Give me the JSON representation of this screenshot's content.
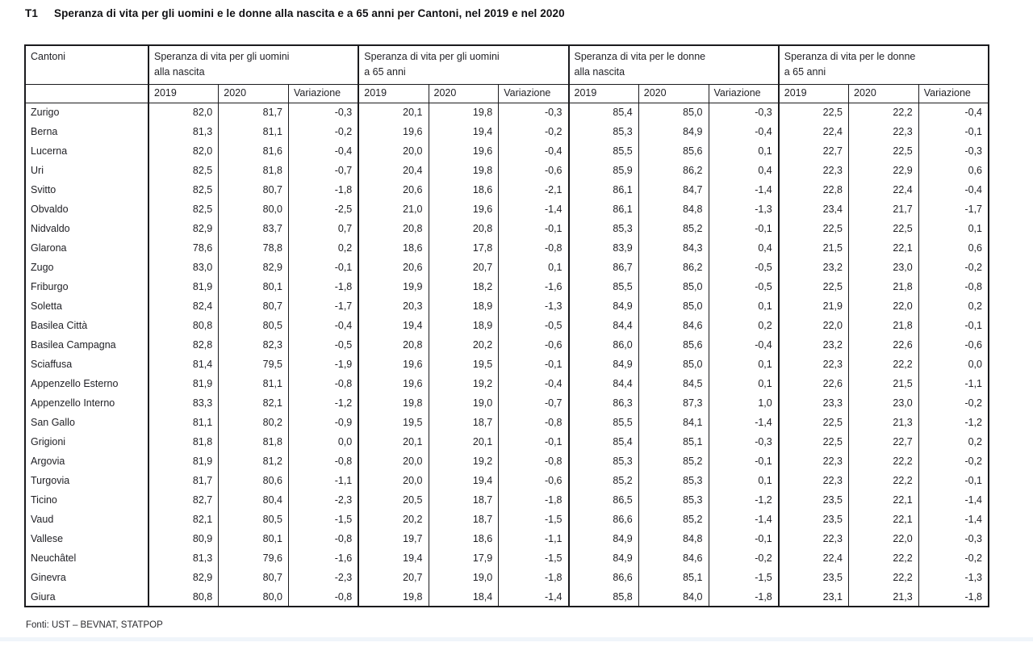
{
  "title": {
    "number": "T1",
    "text": "Speranza di vita per gli uomini e le donne alla nascita e a 65 anni per Cantoni, nel 2019 e nel 2020"
  },
  "table": {
    "canton_header": "Cantoni",
    "groups": [
      {
        "line1": "Speranza di vita per gli uomini",
        "line2": "alla nascita"
      },
      {
        "line1": "Speranza di vita per gli uomini",
        "line2": "a 65 anni"
      },
      {
        "line1": "Speranza di vita per le donne",
        "line2": "alla nascita"
      },
      {
        "line1": "Speranza di vita per le donne",
        "line2": "a 65 anni"
      }
    ],
    "sub_headers": [
      "2019",
      "2020",
      "Variazione"
    ],
    "rows": [
      [
        "Zurigo",
        "82,0",
        "81,7",
        "-0,3",
        "20,1",
        "19,8",
        "-0,3",
        "85,4",
        "85,0",
        "-0,3",
        "22,5",
        "22,2",
        "-0,4"
      ],
      [
        "Berna",
        "81,3",
        "81,1",
        "-0,2",
        "19,6",
        "19,4",
        "-0,2",
        "85,3",
        "84,9",
        "-0,4",
        "22,4",
        "22,3",
        "-0,1"
      ],
      [
        "Lucerna",
        "82,0",
        "81,6",
        "-0,4",
        "20,0",
        "19,6",
        "-0,4",
        "85,5",
        "85,6",
        "0,1",
        "22,7",
        "22,5",
        "-0,3"
      ],
      [
        "Uri",
        "82,5",
        "81,8",
        "-0,7",
        "20,4",
        "19,8",
        "-0,6",
        "85,9",
        "86,2",
        "0,4",
        "22,3",
        "22,9",
        "0,6"
      ],
      [
        "Svitto",
        "82,5",
        "80,7",
        "-1,8",
        "20,6",
        "18,6",
        "-2,1",
        "86,1",
        "84,7",
        "-1,4",
        "22,8",
        "22,4",
        "-0,4"
      ],
      [
        "Obvaldo",
        "82,5",
        "80,0",
        "-2,5",
        "21,0",
        "19,6",
        "-1,4",
        "86,1",
        "84,8",
        "-1,3",
        "23,4",
        "21,7",
        "-1,7"
      ],
      [
        "Nidvaldo",
        "82,9",
        "83,7",
        "0,7",
        "20,8",
        "20,8",
        "-0,1",
        "85,3",
        "85,2",
        "-0,1",
        "22,5",
        "22,5",
        "0,1"
      ],
      [
        "Glarona",
        "78,6",
        "78,8",
        "0,2",
        "18,6",
        "17,8",
        "-0,8",
        "83,9",
        "84,3",
        "0,4",
        "21,5",
        "22,1",
        "0,6"
      ],
      [
        "Zugo",
        "83,0",
        "82,9",
        "-0,1",
        "20,6",
        "20,7",
        "0,1",
        "86,7",
        "86,2",
        "-0,5",
        "23,2",
        "23,0",
        "-0,2"
      ],
      [
        "Friburgo",
        "81,9",
        "80,1",
        "-1,8",
        "19,9",
        "18,2",
        "-1,6",
        "85,5",
        "85,0",
        "-0,5",
        "22,5",
        "21,8",
        "-0,8"
      ],
      [
        "Soletta",
        "82,4",
        "80,7",
        "-1,7",
        "20,3",
        "18,9",
        "-1,3",
        "84,9",
        "85,0",
        "0,1",
        "21,9",
        "22,0",
        "0,2"
      ],
      [
        "Basilea Città",
        "80,8",
        "80,5",
        "-0,4",
        "19,4",
        "18,9",
        "-0,5",
        "84,4",
        "84,6",
        "0,2",
        "22,0",
        "21,8",
        "-0,1"
      ],
      [
        "Basilea Campagna",
        "82,8",
        "82,3",
        "-0,5",
        "20,8",
        "20,2",
        "-0,6",
        "86,0",
        "85,6",
        "-0,4",
        "23,2",
        "22,6",
        "-0,6"
      ],
      [
        "Sciaffusa",
        "81,4",
        "79,5",
        "-1,9",
        "19,6",
        "19,5",
        "-0,1",
        "84,9",
        "85,0",
        "0,1",
        "22,3",
        "22,2",
        "0,0"
      ],
      [
        "Appenzello Esterno",
        "81,9",
        "81,1",
        "-0,8",
        "19,6",
        "19,2",
        "-0,4",
        "84,4",
        "84,5",
        "0,1",
        "22,6",
        "21,5",
        "-1,1"
      ],
      [
        "Appenzello Interno",
        "83,3",
        "82,1",
        "-1,2",
        "19,8",
        "19,0",
        "-0,7",
        "86,3",
        "87,3",
        "1,0",
        "23,3",
        "23,0",
        "-0,2"
      ],
      [
        "San Gallo",
        "81,1",
        "80,2",
        "-0,9",
        "19,5",
        "18,7",
        "-0,8",
        "85,5",
        "84,1",
        "-1,4",
        "22,5",
        "21,3",
        "-1,2"
      ],
      [
        "Grigioni",
        "81,8",
        "81,8",
        "0,0",
        "20,1",
        "20,1",
        "-0,1",
        "85,4",
        "85,1",
        "-0,3",
        "22,5",
        "22,7",
        "0,2"
      ],
      [
        "Argovia",
        "81,9",
        "81,2",
        "-0,8",
        "20,0",
        "19,2",
        "-0,8",
        "85,3",
        "85,2",
        "-0,1",
        "22,3",
        "22,2",
        "-0,2"
      ],
      [
        "Turgovia",
        "81,7",
        "80,6",
        "-1,1",
        "20,0",
        "19,4",
        "-0,6",
        "85,2",
        "85,3",
        "0,1",
        "22,3",
        "22,2",
        "-0,1"
      ],
      [
        "Ticino",
        "82,7",
        "80,4",
        "-2,3",
        "20,5",
        "18,7",
        "-1,8",
        "86,5",
        "85,3",
        "-1,2",
        "23,5",
        "22,1",
        "-1,4"
      ],
      [
        "Vaud",
        "82,1",
        "80,5",
        "-1,5",
        "20,2",
        "18,7",
        "-1,5",
        "86,6",
        "85,2",
        "-1,4",
        "23,5",
        "22,1",
        "-1,4"
      ],
      [
        "Vallese",
        "80,9",
        "80,1",
        "-0,8",
        "19,7",
        "18,6",
        "-1,1",
        "84,9",
        "84,8",
        "-0,1",
        "22,3",
        "22,0",
        "-0,3"
      ],
      [
        "Neuchâtel",
        "81,3",
        "79,6",
        "-1,6",
        "19,4",
        "17,9",
        "-1,5",
        "84,9",
        "84,6",
        "-0,2",
        "22,4",
        "22,2",
        "-0,2"
      ],
      [
        "Ginevra",
        "82,9",
        "80,7",
        "-2,3",
        "20,7",
        "19,0",
        "-1,8",
        "86,6",
        "85,1",
        "-1,5",
        "23,5",
        "22,2",
        "-1,3"
      ],
      [
        "Giura",
        "80,8",
        "80,0",
        "-0,8",
        "19,8",
        "18,4",
        "-1,4",
        "85,8",
        "84,0",
        "-1,8",
        "23,1",
        "21,3",
        "-1,8"
      ]
    ]
  },
  "footer": "Fonti: UST – BEVNAT, STATPOP",
  "colors": {
    "border": "#1b1b1e",
    "text": "#1f1f24",
    "background": "#ffffff",
    "bottom_strip": "#f0f5fa"
  }
}
